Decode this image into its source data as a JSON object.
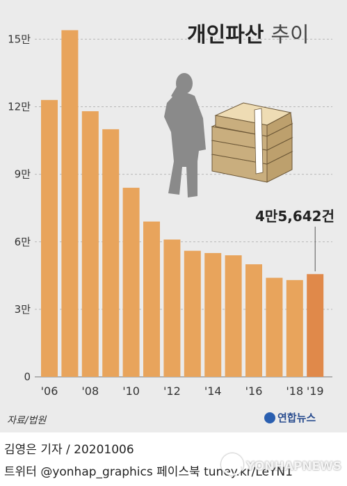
{
  "chart_data": {
    "type": "bar",
    "title_main": "개인파산",
    "title_sub": "추이",
    "categories": [
      "2006",
      "2007",
      "2008",
      "2009",
      "2010",
      "2011",
      "2012",
      "2013",
      "2014",
      "2015",
      "2016",
      "2017",
      "2018",
      "2019"
    ],
    "x_tick_labels": [
      "'06",
      "",
      "'08",
      "",
      "'10",
      "",
      "'12",
      "",
      "'14",
      "",
      "'16",
      "",
      "'18",
      "'19"
    ],
    "values": [
      123000,
      154000,
      118000,
      110000,
      84000,
      69000,
      61000,
      56000,
      55000,
      54000,
      50000,
      44000,
      43000,
      45642
    ],
    "y_ticks": [
      0,
      30000,
      60000,
      90000,
      120000,
      150000
    ],
    "y_tick_labels": [
      "0",
      "3만",
      "6만",
      "9만",
      "12만",
      "15만"
    ],
    "ylim": [
      0,
      160000
    ],
    "grid": true,
    "annotation": {
      "label": "4만5,642건",
      "category": "2019"
    },
    "colors": {
      "bar": "#e8a45c",
      "bar_highlight": "#e0894a",
      "background": "#ebebeb",
      "grid": "#b8b8b8"
    }
  },
  "source": "자료/법원",
  "logo": "연합뉴스",
  "credit_line_1": "김영은 기자 / 20201006",
  "credit_line_2": "트위터 @yonhap_graphics  페이스북 tuney.kr/LeYN1",
  "watermark": "YONHAPNEWS"
}
